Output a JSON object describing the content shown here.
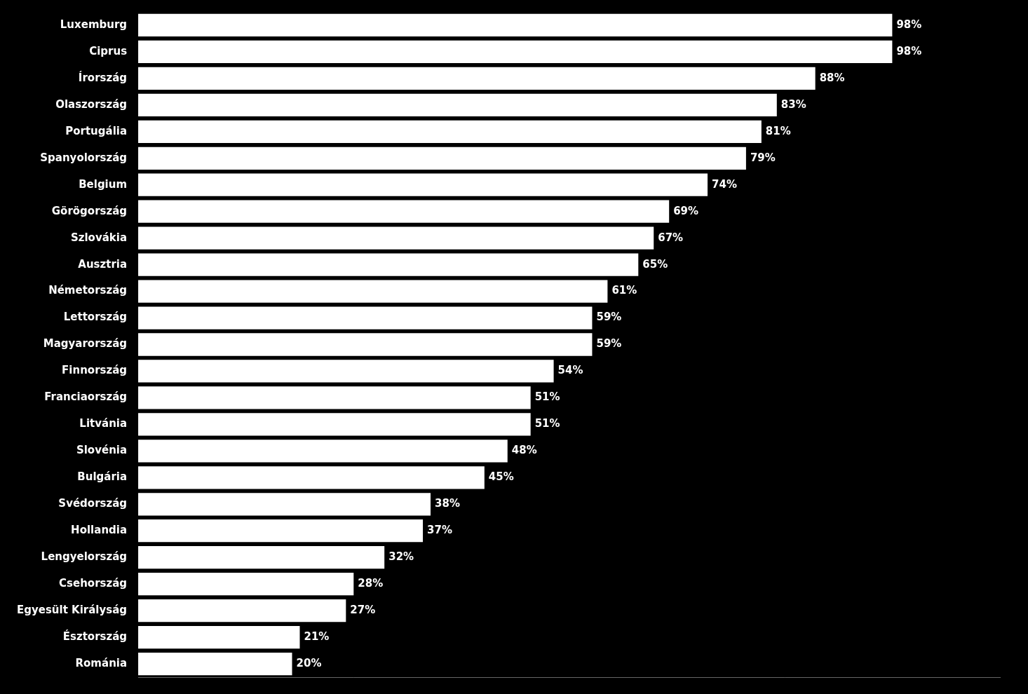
{
  "chart_data": {
    "type": "bar",
    "orientation": "horizontal",
    "categories": [
      "Luxemburg",
      "Ciprus",
      "Írország",
      "Olaszország",
      "Portugália",
      "Spanyolország",
      "Belgium",
      "Görögország",
      "Szlovákia",
      "Ausztria",
      "Németország",
      "Lettország",
      "Magyarország",
      "Finnország",
      "Franciaország",
      "Litvánia",
      "Slovénia",
      "Bulgária",
      "Svédország",
      "Hollandia",
      "Lengyelország",
      "Csehország",
      "Egyesült Királyság",
      "Észtország",
      "Románia"
    ],
    "values": [
      98,
      98,
      88,
      83,
      81,
      79,
      74,
      69,
      67,
      65,
      61,
      59,
      59,
      54,
      51,
      51,
      48,
      45,
      38,
      37,
      32,
      28,
      27,
      21,
      20
    ],
    "value_labels": [
      "98%",
      "98%",
      "88%",
      "83%",
      "81%",
      "79%",
      "74%",
      "69%",
      "67%",
      "65%",
      "61%",
      "59%",
      "59%",
      "54%",
      "51%",
      "51%",
      "48%",
      "45%",
      "38%",
      "37%",
      "32%",
      "28%",
      "27%",
      "21%",
      "20%"
    ],
    "color": "#ffffff",
    "xlim": [
      0,
      112
    ],
    "grid": false,
    "tick_labels": "y",
    "data_labels": true
  }
}
